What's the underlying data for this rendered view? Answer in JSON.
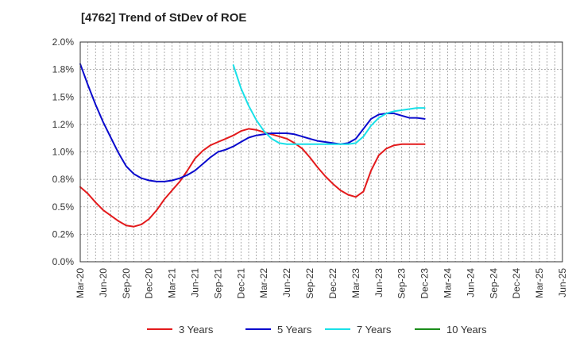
{
  "chart_data": {
    "type": "line",
    "title": "[4762]  Trend of StDev of ROE",
    "x_labels": [
      "Mar-20",
      "Jun-20",
      "Sep-20",
      "Dec-20",
      "Mar-21",
      "Jun-21",
      "Sep-21",
      "Dec-21",
      "Mar-22",
      "Jun-22",
      "Sep-22",
      "Dec-22",
      "Mar-23",
      "Jun-23",
      "Sep-23",
      "Dec-23",
      "Mar-24",
      "Jun-24",
      "Sep-24",
      "Dec-24",
      "Mar-25",
      "Jun-25"
    ],
    "y_ticks": [
      "0.0%",
      "0.2%",
      "0.5%",
      "0.8%",
      "1.0%",
      "1.2%",
      "1.5%",
      "1.8%",
      "2.0%"
    ],
    "y_range": [
      0,
      2.0
    ],
    "grid": "dashed vertical and horizontal",
    "legend_position": "bottom",
    "series": [
      {
        "name": "3 Years",
        "color": "#e31a1c",
        "values": [
          [
            0,
            0.68
          ],
          [
            1,
            0.62
          ],
          [
            2,
            0.54
          ],
          [
            3,
            0.47
          ],
          [
            4,
            0.42
          ],
          [
            5,
            0.37
          ],
          [
            6,
            0.33
          ],
          [
            7,
            0.32
          ],
          [
            8,
            0.34
          ],
          [
            9,
            0.39
          ],
          [
            10,
            0.47
          ],
          [
            11,
            0.57
          ],
          [
            12,
            0.65
          ],
          [
            13,
            0.73
          ],
          [
            14,
            0.83
          ],
          [
            15,
            0.94
          ],
          [
            16,
            1.01
          ],
          [
            17,
            1.06
          ],
          [
            18,
            1.09
          ],
          [
            19,
            1.12
          ],
          [
            20,
            1.15
          ],
          [
            21,
            1.19
          ],
          [
            22,
            1.21
          ],
          [
            23,
            1.2
          ],
          [
            24,
            1.18
          ],
          [
            25,
            1.16
          ],
          [
            26,
            1.14
          ],
          [
            27,
            1.12
          ],
          [
            28,
            1.08
          ],
          [
            29,
            1.03
          ],
          [
            30,
            0.95
          ],
          [
            31,
            0.86
          ],
          [
            32,
            0.78
          ],
          [
            33,
            0.71
          ],
          [
            34,
            0.65
          ],
          [
            35,
            0.61
          ],
          [
            36,
            0.59
          ],
          [
            37,
            0.64
          ],
          [
            38,
            0.83
          ],
          [
            39,
            0.97
          ],
          [
            40,
            1.03
          ],
          [
            41,
            1.06
          ],
          [
            42,
            1.07
          ],
          [
            43,
            1.07
          ],
          [
            44,
            1.07
          ],
          [
            45,
            1.07
          ]
        ]
      },
      {
        "name": "5 Years",
        "color": "#0a0acd",
        "values": [
          [
            0,
            1.8
          ],
          [
            1,
            1.61
          ],
          [
            2,
            1.43
          ],
          [
            3,
            1.27
          ],
          [
            4,
            1.13
          ],
          [
            5,
            0.99
          ],
          [
            6,
            0.87
          ],
          [
            7,
            0.8
          ],
          [
            8,
            0.76
          ],
          [
            9,
            0.74
          ],
          [
            10,
            0.73
          ],
          [
            11,
            0.73
          ],
          [
            12,
            0.74
          ],
          [
            13,
            0.76
          ],
          [
            14,
            0.79
          ],
          [
            15,
            0.83
          ],
          [
            16,
            0.89
          ],
          [
            17,
            0.95
          ],
          [
            18,
            1.0
          ],
          [
            19,
            1.02
          ],
          [
            20,
            1.05
          ],
          [
            21,
            1.09
          ],
          [
            22,
            1.13
          ],
          [
            23,
            1.15
          ],
          [
            24,
            1.16
          ],
          [
            25,
            1.17
          ],
          [
            26,
            1.17
          ],
          [
            27,
            1.17
          ],
          [
            28,
            1.16
          ],
          [
            29,
            1.14
          ],
          [
            30,
            1.12
          ],
          [
            31,
            1.1
          ],
          [
            32,
            1.09
          ],
          [
            33,
            1.08
          ],
          [
            34,
            1.07
          ],
          [
            35,
            1.08
          ],
          [
            36,
            1.12
          ],
          [
            37,
            1.21
          ],
          [
            38,
            1.3
          ],
          [
            39,
            1.34
          ],
          [
            40,
            1.35
          ],
          [
            41,
            1.35
          ],
          [
            42,
            1.33
          ],
          [
            43,
            1.31
          ],
          [
            44,
            1.31
          ],
          [
            45,
            1.3
          ]
        ]
      },
      {
        "name": "7 Years",
        "color": "#19e0e8",
        "values": [
          [
            20,
            1.79
          ],
          [
            21,
            1.58
          ],
          [
            22,
            1.42
          ],
          [
            23,
            1.29
          ],
          [
            24,
            1.19
          ],
          [
            25,
            1.12
          ],
          [
            26,
            1.08
          ],
          [
            27,
            1.07
          ],
          [
            28,
            1.07
          ],
          [
            29,
            1.07
          ],
          [
            30,
            1.07
          ],
          [
            31,
            1.07
          ],
          [
            32,
            1.07
          ],
          [
            33,
            1.07
          ],
          [
            34,
            1.07
          ],
          [
            35,
            1.07
          ],
          [
            36,
            1.08
          ],
          [
            37,
            1.14
          ],
          [
            38,
            1.24
          ],
          [
            39,
            1.31
          ],
          [
            40,
            1.35
          ],
          [
            41,
            1.37
          ],
          [
            42,
            1.38
          ],
          [
            43,
            1.39
          ],
          [
            44,
            1.4
          ],
          [
            45,
            1.4
          ]
        ]
      },
      {
        "name": "10 Years",
        "color": "#1a8c1a",
        "values": []
      }
    ]
  }
}
